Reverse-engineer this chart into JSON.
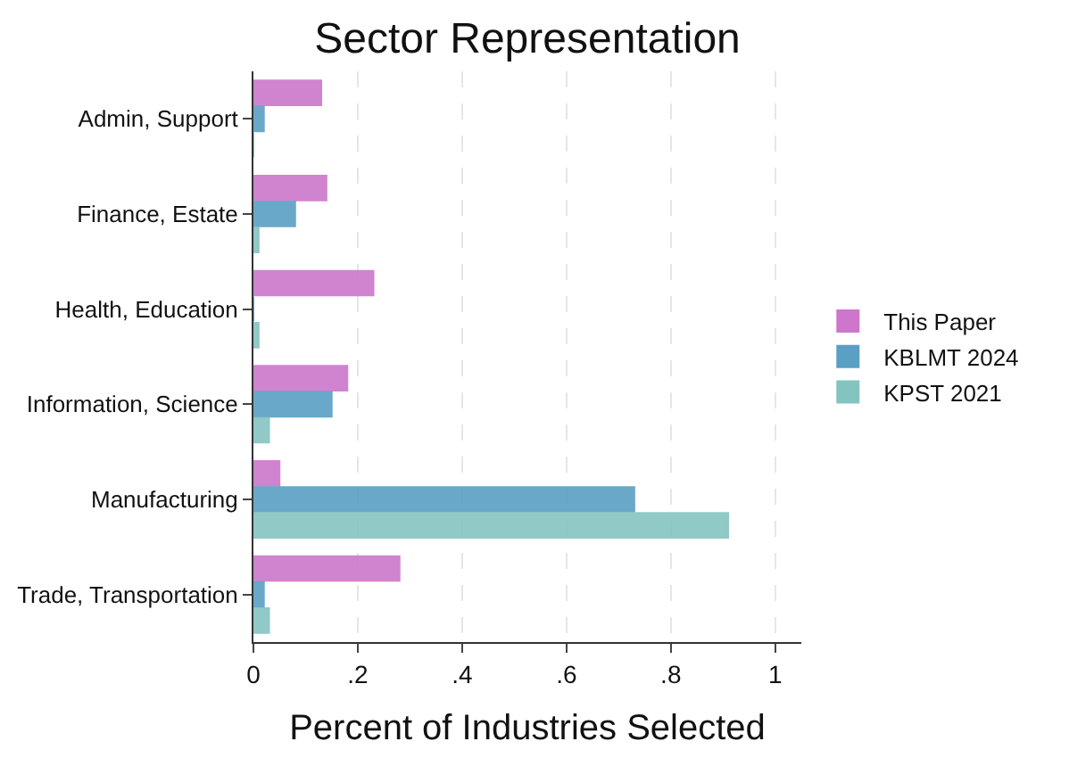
{
  "chart_data": {
    "type": "bar",
    "orientation": "horizontal",
    "title": "Sector Representation",
    "xlabel": "Percent of Industries Selected",
    "categories": [
      "Admin, Support",
      "Finance, Estate",
      "Health, Education",
      "Information, Science",
      "Manufacturing",
      "Trade, Transportation"
    ],
    "series": [
      {
        "name": "This Paper",
        "color": "#cc77cc",
        "values": [
          0.13,
          0.14,
          0.23,
          0.18,
          0.05,
          0.28
        ]
      },
      {
        "name": "KBLMT 2024",
        "color": "#5a9fc4",
        "values": [
          0.02,
          0.08,
          0,
          0.15,
          0.73,
          0.02
        ]
      },
      {
        "name": "KPST 2021",
        "color": "#84c4c0",
        "values": [
          0,
          0.01,
          0.01,
          0.03,
          0.91,
          0.03
        ]
      }
    ],
    "xlim": [
      0,
      1.05
    ],
    "xticks": [
      {
        "value": 0,
        "label": "0"
      },
      {
        "value": 0.2,
        "label": ".2"
      },
      {
        "value": 0.4,
        "label": ".4"
      },
      {
        "value": 0.6,
        "label": ".6"
      },
      {
        "value": 0.8,
        "label": ".8"
      },
      {
        "value": 1,
        "label": "1"
      }
    ],
    "grid": "x",
    "legend": "right"
  }
}
